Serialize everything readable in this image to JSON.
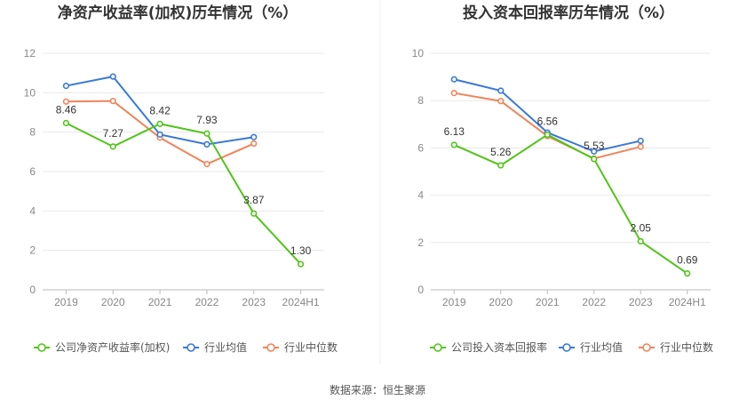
{
  "chart_data": [
    {
      "type": "line",
      "title": "净资产收益率(加权)历年情况（%）",
      "categories": [
        "2019",
        "2020",
        "2021",
        "2022",
        "2023",
        "2024H1"
      ],
      "ylim": [
        0,
        12
      ],
      "yticks": [
        0,
        2,
        4,
        6,
        8,
        10,
        12
      ],
      "grid": true,
      "legend_position": "bottom-left",
      "series": [
        {
          "name": "公司净资产收益率(加权)",
          "color": "#52c41a",
          "values": [
            8.46,
            7.27,
            8.42,
            7.93,
            3.87,
            1.3
          ],
          "labels": [
            "8.46",
            "7.27",
            "8.42",
            "7.93",
            "3.87",
            "1.30"
          ]
        },
        {
          "name": "行业均值",
          "color": "#3a78d8",
          "values": [
            10.35,
            10.82,
            7.88,
            7.38,
            7.75,
            null
          ]
        },
        {
          "name": "行业中位数",
          "color": "#f0845a",
          "values": [
            9.55,
            9.58,
            7.72,
            6.38,
            7.42,
            null
          ]
        }
      ]
    },
    {
      "type": "line",
      "title": "投入资本回报率历年情况（%）",
      "categories": [
        "2019",
        "2020",
        "2021",
        "2022",
        "2023",
        "2024H1"
      ],
      "ylim": [
        0,
        10
      ],
      "yticks": [
        0,
        2,
        4,
        6,
        8,
        10
      ],
      "grid": true,
      "legend_position": "bottom-left",
      "series": [
        {
          "name": "公司投入资本回报率",
          "color": "#52c41a",
          "values": [
            6.13,
            5.26,
            6.56,
            5.53,
            2.05,
            0.69
          ],
          "labels": [
            "6.13",
            "5.26",
            "6.56",
            "5.53",
            "2.05",
            "0.69"
          ]
        },
        {
          "name": "行业均值",
          "color": "#3a78d8",
          "values": [
            8.9,
            8.42,
            6.65,
            5.85,
            6.3,
            null
          ]
        },
        {
          "name": "行业中位数",
          "color": "#f0845a",
          "values": [
            8.32,
            7.98,
            6.5,
            5.55,
            6.05,
            null
          ]
        }
      ]
    }
  ],
  "source": "数据来源：恒生聚源"
}
